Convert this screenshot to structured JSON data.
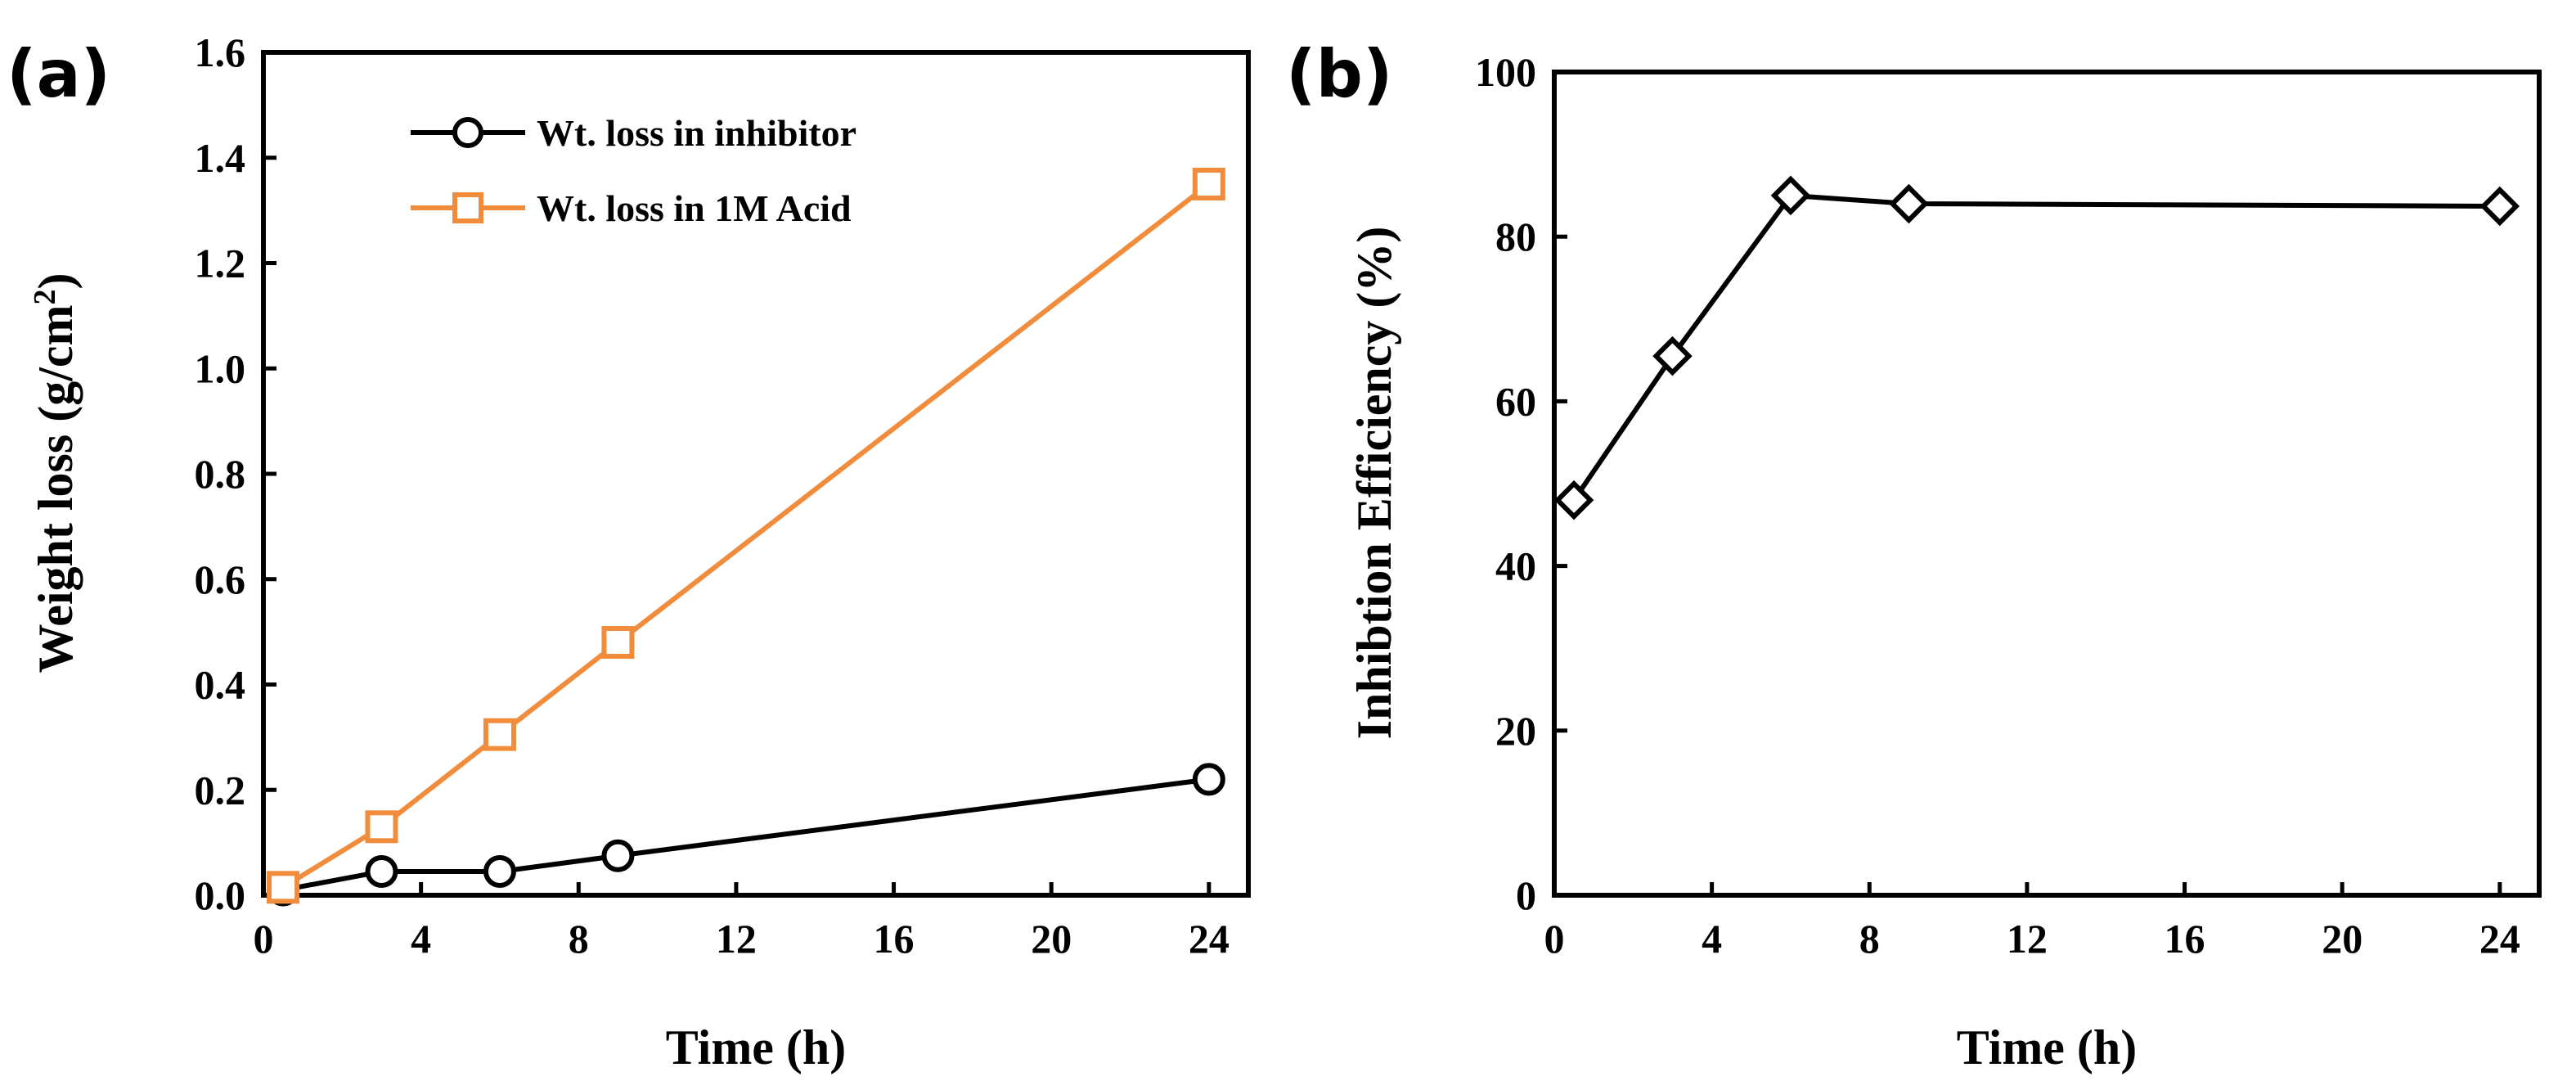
{
  "chart_data": [
    {
      "panel_label": "(a)",
      "type": "line",
      "xlabel": "Time (h)",
      "ylabel_main": "Weight loss (g/cm",
      "ylabel_sup": "2",
      "ylabel_close": ")",
      "xlim": [
        0,
        25
      ],
      "ylim": [
        0,
        1.6
      ],
      "xticks": [
        "0",
        "4",
        "8",
        "12",
        "16",
        "20",
        "24"
      ],
      "yticks": [
        "0.0",
        "0.2",
        "0.4",
        "0.6",
        "0.8",
        "1.0",
        "1.2",
        "1.4",
        "1.6"
      ],
      "legend_position": "top-left",
      "series": [
        {
          "name": "Wt. loss in inhibitor",
          "color": "#000000",
          "marker": "circle",
          "x": [
            0.5,
            3,
            6,
            9,
            24
          ],
          "y": [
            0.01,
            0.045,
            0.045,
            0.075,
            0.22
          ]
        },
        {
          "name": "Wt. loss in 1M Acid",
          "color": "#f08c3c",
          "marker": "square",
          "x": [
            0.5,
            3,
            6,
            9,
            24
          ],
          "y": [
            0.015,
            0.13,
            0.305,
            0.48,
            1.35
          ]
        }
      ]
    },
    {
      "panel_label": "(b)",
      "type": "line",
      "xlabel": "Time (h)",
      "ylabel": "Inhibtion Efficiency (%)",
      "xlim": [
        0,
        25
      ],
      "ylim": [
        0,
        100
      ],
      "xticks": [
        "0",
        "4",
        "8",
        "12",
        "16",
        "20",
        "24"
      ],
      "yticks": [
        "0",
        "20",
        "40",
        "60",
        "80",
        "100"
      ],
      "series": [
        {
          "name": "Inhibition Efficiency",
          "color": "#000000",
          "marker": "diamond",
          "x": [
            0.5,
            3,
            6,
            9,
            24
          ],
          "y": [
            48,
            65.5,
            85,
            84,
            83.7
          ]
        }
      ]
    }
  ]
}
